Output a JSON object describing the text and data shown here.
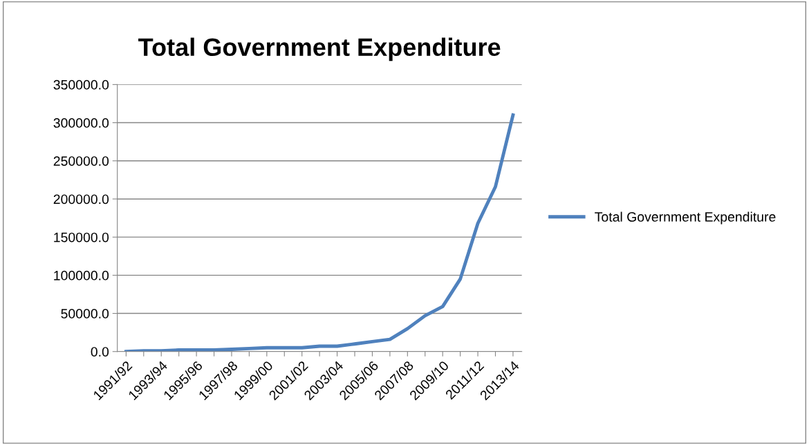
{
  "chart_data": {
    "type": "line",
    "title": "Total Government Expenditure",
    "categories": [
      "1991/92",
      null,
      "1993/94",
      null,
      "1995/96",
      null,
      "1997/98",
      null,
      "1999/00",
      null,
      "2001/02",
      null,
      "2003/04",
      null,
      "2005/06",
      null,
      "2007/08",
      null,
      "2009/10",
      null,
      "2011/12",
      null,
      "2013/14"
    ],
    "series": [
      {
        "name": "Total Government Expenditure",
        "color": "#4f81bd",
        "values": [
          0,
          1000,
          1000,
          2000,
          2000,
          2000,
          3000,
          4000,
          5000,
          5000,
          5000,
          7000,
          7000,
          10000,
          13000,
          16000,
          30000,
          47000,
          59000,
          95000,
          168000,
          216000,
          310000
        ]
      }
    ],
    "ylim": [
      0,
      350000
    ],
    "yticks": [
      {
        "value": 0,
        "label": "0.0"
      },
      {
        "value": 50000,
        "label": "50000.0"
      },
      {
        "value": 100000,
        "label": "100000.0"
      },
      {
        "value": 150000,
        "label": "150000.0"
      },
      {
        "value": 200000,
        "label": "200000.0"
      },
      {
        "value": 250000,
        "label": "250000.0"
      },
      {
        "value": 300000,
        "label": "300000.0"
      },
      {
        "value": 350000,
        "label": "350000.0"
      }
    ],
    "grid": "y",
    "legend": "right",
    "marker": "none",
    "line_style": "solid"
  }
}
